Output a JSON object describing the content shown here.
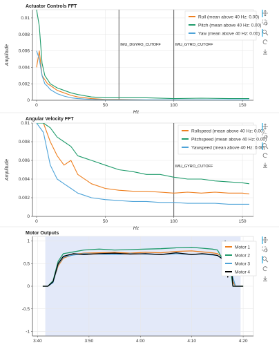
{
  "charts": [
    {
      "title": "Actuator Controls FFT",
      "xlabel": "Hz",
      "ylabel": "Amplitude",
      "xticks": [
        "0",
        "50",
        "100",
        "150"
      ],
      "yticks": [
        "0",
        "0.002",
        "0.004",
        "0.006",
        "0.008",
        "0.01"
      ],
      "annotations": [
        "IMU_DGYRO_CUTOFF",
        "IMU_GYRO_CUTOFF"
      ],
      "legend": [
        "Roll (mean above 40 Hz: 0.00)",
        "Pitch (mean above 40 Hz: 0.00)",
        "Yaw (mean above 40 Hz: 0.00)"
      ]
    },
    {
      "title": "Angular Velocity FFT",
      "xlabel": "Hz",
      "ylabel": "Amplitude",
      "xticks": [
        "0",
        "50",
        "100",
        "150"
      ],
      "yticks": [
        "0",
        "0.002",
        "0.004",
        "0.006",
        "0.008",
        "0.01"
      ],
      "annotations": [
        "IMU_GYRO_CUTOFF"
      ],
      "legend": [
        "Rollspeed (mean above 40 Hz: 0.00)",
        "Pitchspeed (mean above 40 Hz: 0.00)",
        "Yawspeed (mean above 40 Hz: 0.00)"
      ]
    },
    {
      "title": "Motor Outputs",
      "xlabel": "",
      "ylabel": "",
      "xticks": [
        "3:40",
        "3:50",
        "4:00",
        "4:10",
        "4:20"
      ],
      "yticks": [
        "-1",
        "-0.5",
        "0",
        "0.5",
        "1"
      ],
      "annotations": [],
      "legend": [
        "Motor 1",
        "Motor 2",
        "Motor 3",
        "Motor 4"
      ]
    }
  ],
  "chart_data": [
    {
      "type": "line",
      "title": "Actuator Controls FFT",
      "xlabel": "Hz",
      "ylabel": "Amplitude",
      "xlim": [
        -3,
        158
      ],
      "ylim": [
        0,
        0.011
      ],
      "vlines": [
        {
          "x": 60,
          "label": "IMU_DGYRO_CUTOFF"
        },
        {
          "x": 100,
          "label": "IMU_GYRO_CUTOFF"
        }
      ],
      "legend_position": "top-right",
      "x": [
        0,
        2,
        4,
        6,
        8,
        10,
        15,
        20,
        25,
        30,
        40,
        50,
        60,
        80,
        100,
        120,
        140,
        155
      ],
      "series": [
        {
          "name": "Roll (mean above 40 Hz: 0.00)",
          "color": "#ee7f1f",
          "values": [
            0.004,
            0.006,
            0.003,
            0.0025,
            0.002,
            0.0018,
            0.0012,
            0.0009,
            0.0006,
            0.0004,
            0.0002,
            0.0001,
            0.0001,
            5e-05,
            5e-05,
            5e-05,
            4e-05,
            4e-05
          ]
        },
        {
          "name": "Pitch (mean above 40 Hz: 0.00)",
          "color": "#1f9b6b",
          "values": [
            0.011,
            0.009,
            0.0045,
            0.003,
            0.0025,
            0.002,
            0.0015,
            0.0012,
            0.0009,
            0.0007,
            0.0004,
            0.0003,
            0.0003,
            0.0003,
            0.0002,
            0.00025,
            0.0002,
            0.0002
          ]
        },
        {
          "name": "Yaw (mean above 40 Hz: 0.00)",
          "color": "#4ea3d8",
          "values": [
            0.006,
            0.005,
            0.003,
            0.002,
            0.0017,
            0.0013,
            0.0008,
            0.0005,
            0.0003,
            0.0002,
            0.0001,
            5e-05,
            5e-05,
            4e-05,
            4e-05,
            4e-05,
            3e-05,
            3e-05
          ]
        }
      ]
    },
    {
      "type": "line",
      "title": "Angular Velocity FFT",
      "xlabel": "Hz",
      "ylabel": "Amplitude",
      "xlim": [
        -3,
        158
      ],
      "ylim": [
        0,
        0.01
      ],
      "vlines": [
        {
          "x": 100,
          "label": "IMU_GYRO_CUTOFF"
        }
      ],
      "legend_position": "top-right",
      "x": [
        0,
        5,
        10,
        15,
        20,
        25,
        30,
        40,
        50,
        60,
        70,
        80,
        90,
        100,
        110,
        120,
        130,
        140,
        150,
        155
      ],
      "series": [
        {
          "name": "Rollspeed (mean above 40 Hz: 0.00)",
          "color": "#ee7f1f",
          "values": [
            0.01,
            0.01,
            0.008,
            0.0065,
            0.0055,
            0.006,
            0.0045,
            0.0035,
            0.003,
            0.0028,
            0.0027,
            0.0027,
            0.0026,
            0.0025,
            0.0026,
            0.0025,
            0.0026,
            0.0025,
            0.0025,
            0.0024
          ]
        },
        {
          "name": "Pitchspeed (mean above 40 Hz: 0.00)",
          "color": "#1f9b6b",
          "values": [
            0.01,
            0.01,
            0.0095,
            0.0085,
            0.008,
            0.0075,
            0.0065,
            0.006,
            0.0055,
            0.005,
            0.0048,
            0.0045,
            0.0045,
            0.0042,
            0.004,
            0.004,
            0.0038,
            0.0037,
            0.0036,
            0.0035
          ]
        },
        {
          "name": "Yawspeed (mean above 40 Hz: 0.00)",
          "color": "#4ea3d8",
          "values": [
            0.01,
            0.009,
            0.0055,
            0.004,
            0.0035,
            0.003,
            0.0025,
            0.002,
            0.0018,
            0.0017,
            0.0016,
            0.0016,
            0.0015,
            0.0015,
            0.0014,
            0.0014,
            0.0014,
            0.0013,
            0.0013,
            0.0013
          ]
        }
      ]
    },
    {
      "type": "line",
      "title": "Motor Outputs",
      "xlabel": "",
      "ylabel": "",
      "x_unit": "seconds",
      "xlim": [
        219,
        262
      ],
      "ylim": [
        -1.1,
        1.1
      ],
      "shaded_region": [
        221.5,
        259.5
      ],
      "legend_position": "top-right",
      "x": [
        221,
        222,
        223,
        224,
        225,
        226,
        227,
        229,
        232,
        235,
        238,
        241,
        244,
        247,
        250,
        252,
        254,
        255,
        256,
        256.5,
        257,
        257.5,
        258,
        258.5,
        259,
        260
      ],
      "series": [
        {
          "name": "Motor 1",
          "color": "#ee7f1f",
          "values": [
            0,
            0,
            0.1,
            0.45,
            0.62,
            0.66,
            0.7,
            0.73,
            0.74,
            0.75,
            0.73,
            0.75,
            0.74,
            0.77,
            0.78,
            0.76,
            0.74,
            0.72,
            0.65,
            0.55,
            0.9,
            0.5,
            0.1,
            0,
            0,
            0
          ]
        },
        {
          "name": "Motor 2",
          "color": "#1f9b6b",
          "values": [
            0,
            0,
            0.12,
            0.55,
            0.72,
            0.74,
            0.76,
            0.8,
            0.82,
            0.8,
            0.81,
            0.82,
            0.83,
            0.85,
            0.86,
            0.84,
            0.82,
            0.8,
            0.6,
            1.0,
            0.9,
            0.4,
            0.0,
            0,
            0,
            0
          ]
        },
        {
          "name": "Motor 3",
          "color": "#4ea3d8",
          "values": [
            0,
            0,
            0.08,
            0.48,
            0.64,
            0.67,
            0.69,
            0.72,
            0.71,
            0.7,
            0.72,
            0.71,
            0.7,
            0.72,
            0.7,
            0.71,
            0.69,
            0.68,
            0.62,
            0.9,
            0.8,
            0.5,
            0.2,
            0,
            0,
            0
          ]
        },
        {
          "name": "Motor 4",
          "color": "#000000",
          "values": [
            0,
            0,
            0.1,
            0.5,
            0.66,
            0.69,
            0.72,
            0.7,
            0.72,
            0.73,
            0.71,
            0.72,
            0.7,
            0.74,
            0.7,
            0.72,
            0.7,
            0.68,
            0.6,
            1.0,
            0.2,
            0.8,
            0.0,
            0,
            0,
            0
          ]
        }
      ]
    }
  ],
  "toolbar": {
    "icons": [
      "pan-icon",
      "box-zoom-icon",
      "wheel-zoom-icon",
      "save-icon"
    ]
  }
}
